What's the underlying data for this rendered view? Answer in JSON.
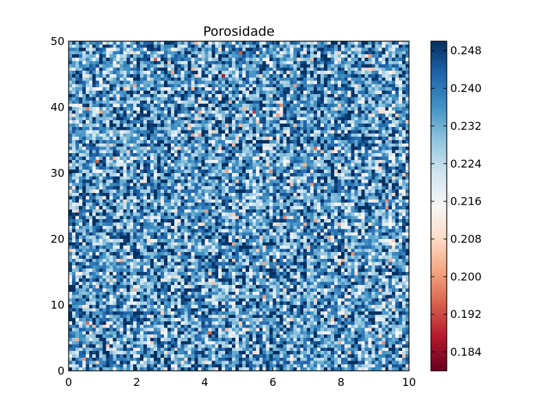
{
  "chart_data": {
    "type": "heatmap",
    "title": "Porosidade",
    "xlabel": "",
    "ylabel": "",
    "xlim": [
      0,
      10
    ],
    "ylim": [
      0,
      50
    ],
    "x_ticks": [
      "0",
      "2",
      "4",
      "6",
      "8",
      "10"
    ],
    "y_ticks": [
      "0",
      "10",
      "20",
      "30",
      "40",
      "50"
    ],
    "grid": {
      "cols": 100,
      "rows": 100
    },
    "value_range": [
      0.18,
      0.25
    ],
    "colormap": "RdBu",
    "colormap_stops": [
      "#67001f",
      "#b2182b",
      "#d6604d",
      "#f4a582",
      "#fddbc7",
      "#f7f7f7",
      "#d1e5f0",
      "#92c5de",
      "#4393c3",
      "#2166ac",
      "#053061"
    ],
    "colorbar": {
      "label": "",
      "ticks": [
        "0.184",
        "0.192",
        "0.200",
        "0.208",
        "0.216",
        "0.224",
        "0.232",
        "0.240",
        "0.248"
      ]
    },
    "values_note": "random field, mean near 0.235, spread ~0.012"
  }
}
